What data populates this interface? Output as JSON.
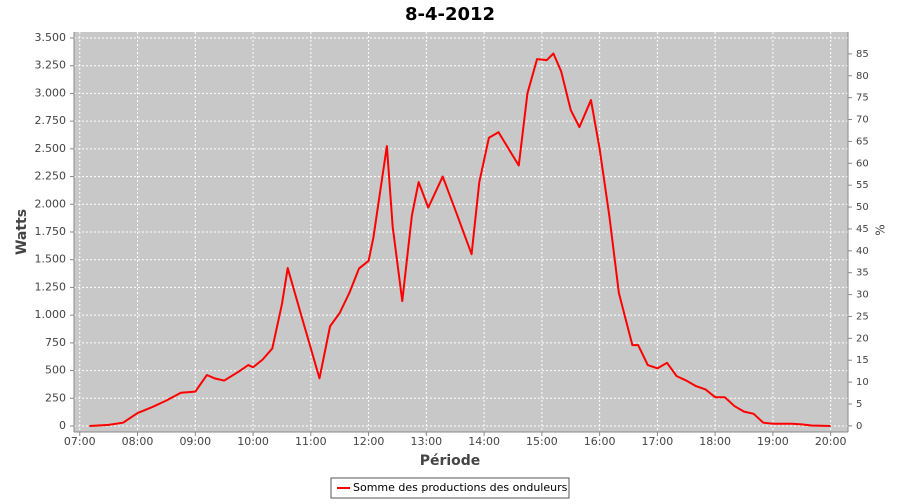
{
  "chart_data": {
    "type": "line",
    "title": "8-4-2012",
    "x_label": "Période",
    "y_label": "Watts",
    "y2_label": "%",
    "xlim": [
      "06:54",
      "20:18"
    ],
    "xticks": [
      "07:00",
      "08:00",
      "09:00",
      "10:00",
      "11:00",
      "12:00",
      "13:00",
      "14:00",
      "15:00",
      "16:00",
      "17:00",
      "18:00",
      "19:00",
      "20:00"
    ],
    "ylim": [
      -54,
      3554
    ],
    "yticks": [
      0,
      250,
      500,
      750,
      {
        "value": 1000,
        "label": "1.000"
      },
      {
        "value": 1250,
        "label": "1.250"
      },
      {
        "value": 1500,
        "label": "1.500"
      },
      {
        "value": 1750,
        "label": "1.750"
      },
      {
        "value": 2000,
        "label": "2.000"
      },
      {
        "value": 2250,
        "label": "2.250"
      },
      {
        "value": 2500,
        "label": "2.500"
      },
      {
        "value": 2750,
        "label": "2.750"
      },
      {
        "value": 3000,
        "label": "3.000"
      },
      {
        "value": 3250,
        "label": "3.250"
      },
      {
        "value": 3500,
        "label": "3.500"
      }
    ],
    "y2lim": [
      -1.4,
      90
    ],
    "y2ticks": [
      0,
      5,
      10,
      15,
      20,
      25,
      30,
      35,
      40,
      45,
      50,
      55,
      60,
      65,
      70,
      75,
      80,
      85
    ],
    "grid": true,
    "legend": "bottom",
    "series": [
      {
        "name": "Somme des productions des onduleurs",
        "color": "#ff0000",
        "x": [
          "07:10",
          "07:30",
          "07:45",
          "08:00",
          "08:15",
          "08:30",
          "08:45",
          "09:00",
          "09:12",
          "09:20",
          "09:30",
          "09:45",
          "09:55",
          "10:00",
          "10:10",
          "10:20",
          "10:30",
          "10:36",
          "10:50",
          "11:00",
          "11:09",
          "11:20",
          "11:30",
          "11:40",
          "11:50",
          "12:00",
          "12:05",
          "12:19",
          "12:25",
          "12:35",
          "12:45",
          "12:52",
          "13:02",
          "13:17",
          "13:30",
          "13:47",
          "13:55",
          "14:05",
          "14:15",
          "14:36",
          "14:45",
          "14:55",
          "15:05",
          "15:12",
          "15:20",
          "15:30",
          "15:39",
          "15:51",
          "16:00",
          "16:10",
          "16:20",
          "16:34",
          "16:40",
          "16:50",
          "17:00",
          "17:10",
          "17:20",
          "17:30",
          "17:40",
          "17:50",
          "18:00",
          "18:10",
          "18:20",
          "18:30",
          "18:40",
          "18:50",
          "19:00",
          "19:20",
          "19:30",
          "19:40",
          "20:00"
        ],
        "values": [
          0,
          10,
          30,
          117,
          170,
          230,
          300,
          310,
          460,
          430,
          410,
          490,
          550,
          530,
          600,
          700,
          1100,
          1425,
          1000,
          700,
          430,
          900,
          1020,
          1200,
          1420,
          1490,
          1700,
          2525,
          1800,
          1127,
          1900,
          2200,
          1970,
          2250,
          1950,
          1550,
          2200,
          2600,
          2650,
          2350,
          3000,
          3309,
          3300,
          3360,
          3200,
          2850,
          2696,
          2940,
          2500,
          1900,
          1200,
          730,
          730,
          550,
          520,
          570,
          450,
          410,
          360,
          330,
          260,
          260,
          180,
          130,
          110,
          30,
          20,
          20,
          15,
          5,
          0
        ]
      }
    ]
  }
}
